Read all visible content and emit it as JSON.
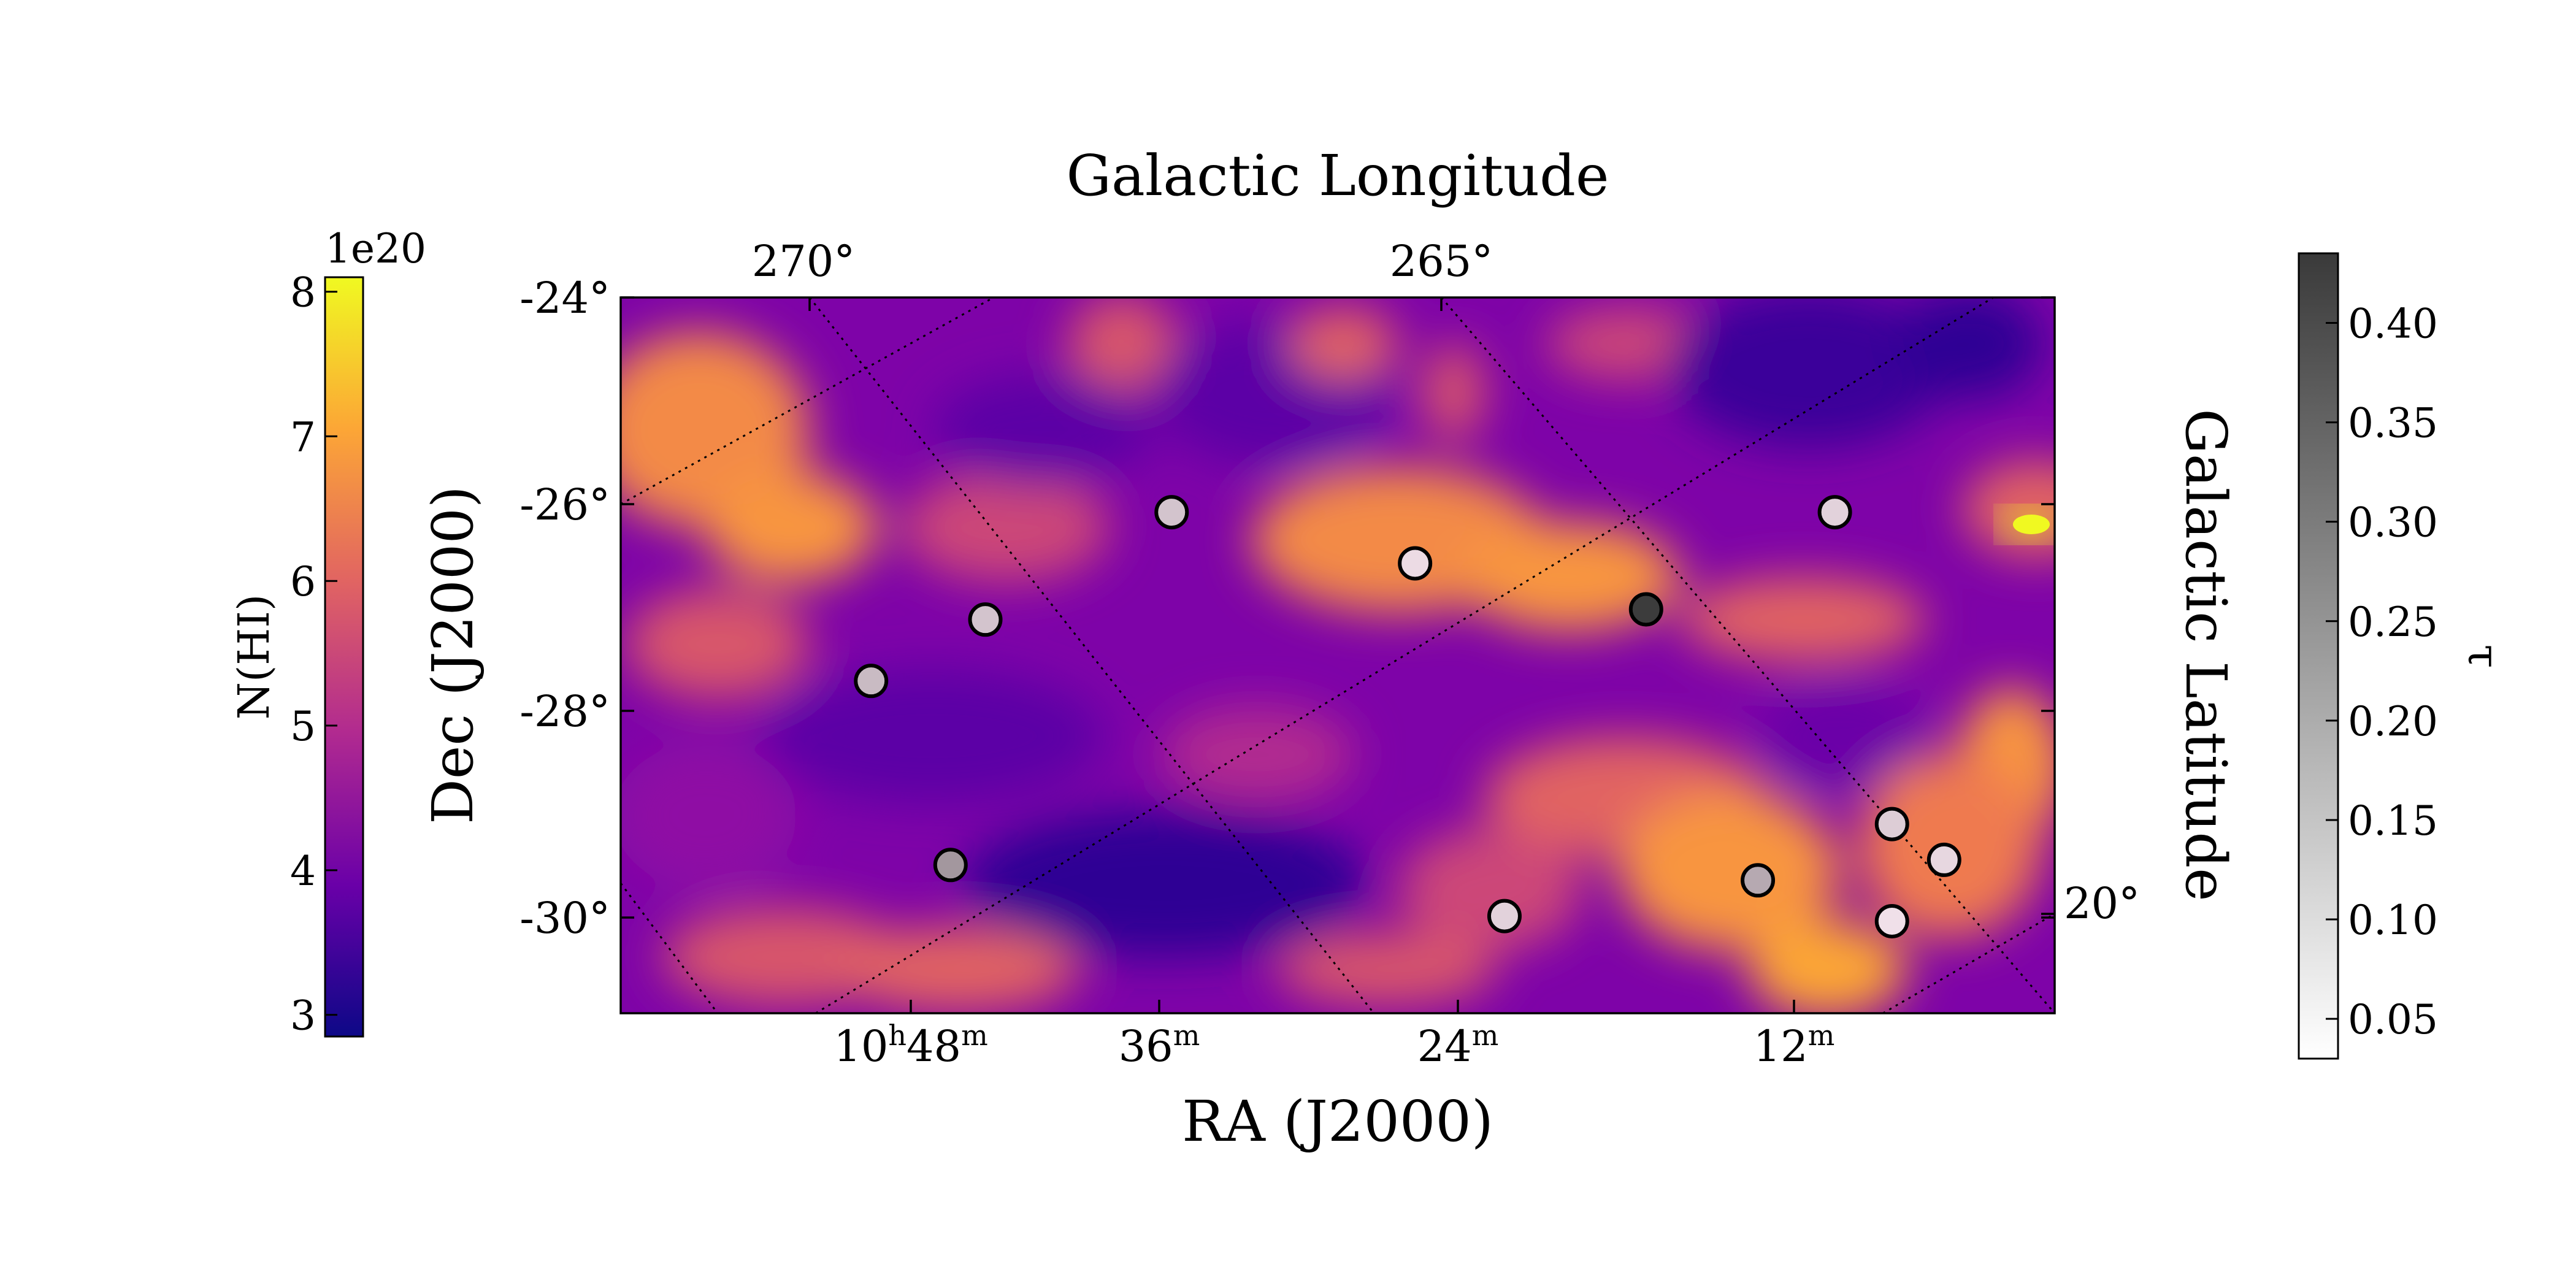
{
  "chart_data": {
    "type": "heatmap",
    "title": "",
    "xlabel": "RA (J2000)",
    "ylabel": "Dec (J2000)",
    "top_axis_label": "Galactic Longitude",
    "right_axis_label": "Galactic Latitude",
    "grid": true,
    "x_ticks": [
      "10h48m",
      "36m",
      "24m",
      "12m"
    ],
    "x_tick_parts": [
      {
        "pre": "10",
        "sup1": "h",
        "mid": "48",
        "sup2": "m"
      },
      {
        "pre": "",
        "sup1": "",
        "mid": "36",
        "sup2": "m"
      },
      {
        "pre": "",
        "sup1": "",
        "mid": "24",
        "sup2": "m"
      },
      {
        "pre": "",
        "sup1": "",
        "mid": "12",
        "sup2": "m"
      }
    ],
    "y_ticks": [
      "-24°",
      "-26°",
      "-28°",
      "-30°"
    ],
    "y_range": [
      -31.0,
      -24.0
    ],
    "top_ticks": [
      "270°",
      "265°"
    ],
    "right_ticks": [
      "20°"
    ],
    "colorbar_left": {
      "label": "N(HI)",
      "scale_label": "1e20",
      "ticks": [
        "3",
        "4",
        "5",
        "6",
        "7",
        "8"
      ],
      "range": [
        2.85,
        8.1
      ],
      "colormap": "plasma",
      "colors": [
        "#0d0887",
        "#6a00a8",
        "#b12a90",
        "#e16462",
        "#fca636",
        "#f0f921"
      ]
    },
    "colorbar_right": {
      "label": "τ",
      "ticks": [
        "0.05",
        "0.10",
        "0.15",
        "0.20",
        "0.25",
        "0.30",
        "0.35",
        "0.40"
      ],
      "range": [
        0.03,
        0.435
      ],
      "colormap": "Greys",
      "colors": [
        "#ffffff",
        "#3a3a3a"
      ]
    },
    "sources": [
      {
        "ra": "10h49.6m",
        "dec": -27.75,
        "tau": 0.14
      },
      {
        "ra": "10h45.0m",
        "dec": -27.15,
        "tau": 0.12
      },
      {
        "ra": "10h46.4m",
        "dec": -29.55,
        "tau": 0.22
      },
      {
        "ra": "10h37.5m",
        "dec": -26.1,
        "tau": 0.12
      },
      {
        "ra": "10h27.7m",
        "dec": -26.6,
        "tau": 0.07
      },
      {
        "ra": "10h24.1m",
        "dec": -30.05,
        "tau": 0.09
      },
      {
        "ra": "10h18.4m",
        "dec": -27.05,
        "tau": 0.43
      },
      {
        "ra": "10h13.9m",
        "dec": -29.7,
        "tau": 0.18
      },
      {
        "ra": "10h10.8m",
        "dec": -26.1,
        "tau": 0.09
      },
      {
        "ra": "10h08.5m",
        "dec": -29.15,
        "tau": 0.1
      },
      {
        "ra": "10h08.5m",
        "dec": -30.1,
        "tau": 0.06
      },
      {
        "ra": "10h06.4m",
        "dec": -29.5,
        "tau": 0.08
      }
    ]
  }
}
